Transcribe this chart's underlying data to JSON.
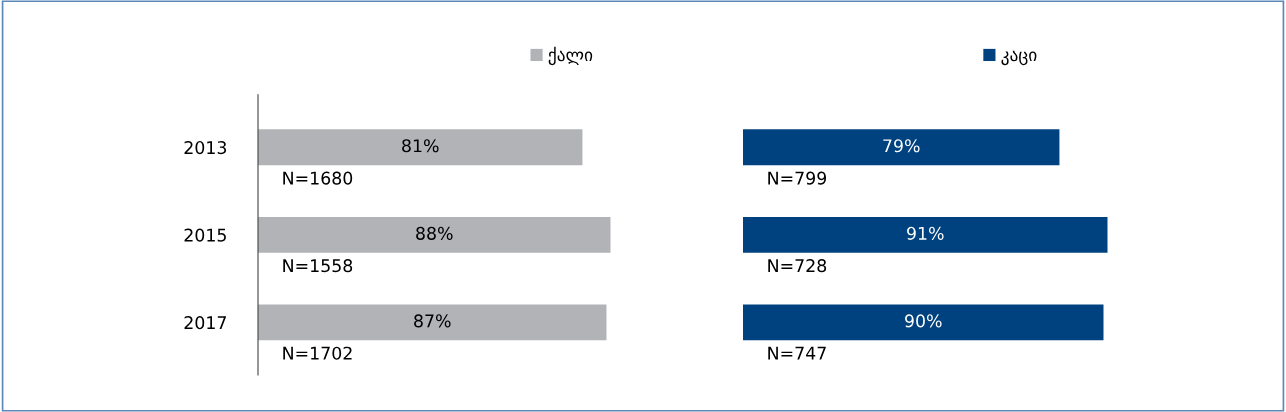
{
  "chart_data": [
    {
      "type": "bar",
      "orientation": "horizontal",
      "categories": [
        "2013",
        "2015",
        "2017"
      ],
      "tick_labels": "y",
      "legend": "top",
      "series": [
        {
          "name": "ქალი",
          "color": "#b1b3b6",
          "values": [
            81,
            88,
            87
          ],
          "value_labels": [
            "81%",
            "88%",
            "87%"
          ]
        }
      ],
      "annotations": [
        "N=1680",
        "N=1558",
        "N=1702"
      ]
    },
    {
      "type": "bar",
      "orientation": "horizontal",
      "categories": [
        "2013",
        "2015",
        "2017"
      ],
      "tick_labels": false,
      "legend": "top",
      "series": [
        {
          "name": "კაცი",
          "color": "#00427f",
          "values": [
            79,
            91,
            90
          ],
          "value_labels": [
            "79%",
            "91%",
            "90%"
          ]
        }
      ],
      "annotations": [
        "N=799",
        "N=728",
        "N=747"
      ]
    }
  ]
}
